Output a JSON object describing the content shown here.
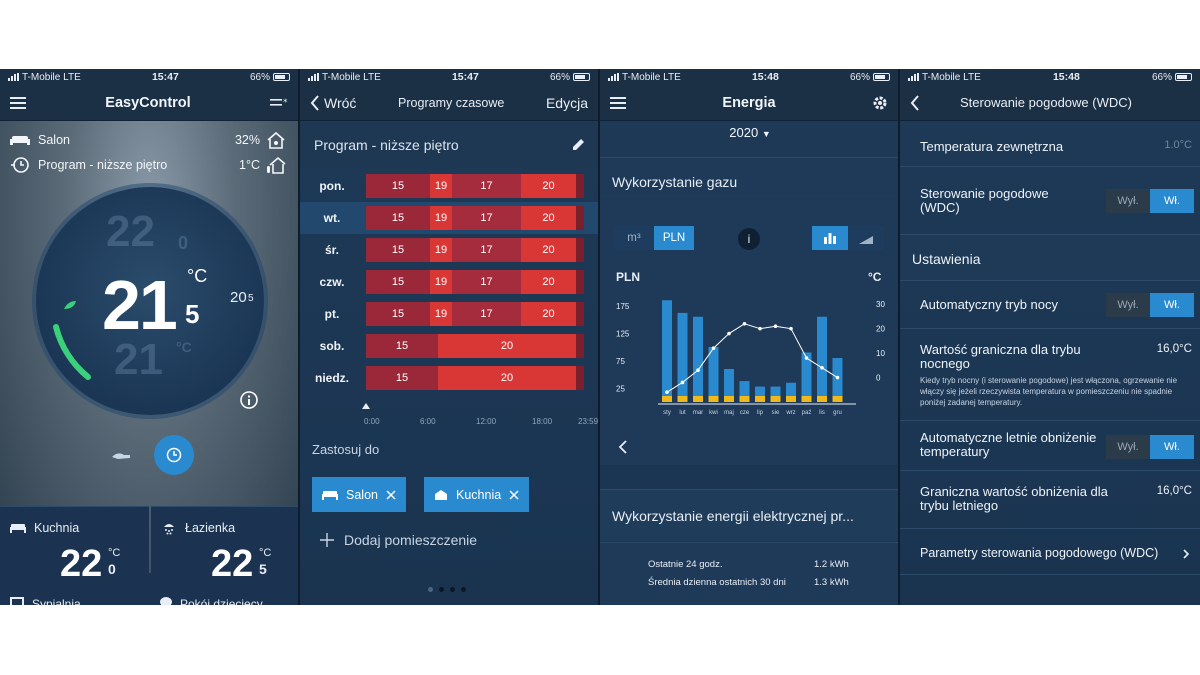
{
  "status_bars": [
    {
      "carrier": "T-Mobile",
      "network": "LTE",
      "time": "15:47",
      "battery": "66%"
    },
    {
      "carrier": "T-Mobile",
      "network": "LTE",
      "time": "15:47",
      "battery": "66%"
    },
    {
      "carrier": "T-Mobile",
      "network": "LTE",
      "time": "15:48",
      "battery": "66%"
    },
    {
      "carrier": "T-Mobile",
      "network": "LTE",
      "time": "15:48",
      "battery": "66%"
    }
  ],
  "screen1": {
    "title": "EasyControl",
    "room_name": "Salon",
    "humidity": "32%",
    "program_name": "Program - niższe piętro",
    "outdoor_temp": "1°C",
    "ghost_top": "22",
    "ghost_top_dec": "0",
    "current_temp": "21",
    "current_temp_dec": "5",
    "temp_unit": "°C",
    "ghost_bottom": "21",
    "ghost_bottom_unit": "°C",
    "side_temp": "20",
    "side_temp_dec": "5",
    "tiles": [
      {
        "name": "Kuchnia",
        "temp": "22",
        "unit": "°C",
        "dec": "0"
      },
      {
        "name": "Łazienka",
        "temp": "22",
        "unit": "°C",
        "dec": "5"
      }
    ],
    "bottom_row": [
      "Sypialnia",
      "Pokój dziecięcy"
    ]
  },
  "screen2": {
    "back_label": "Wróć",
    "title": "Programy czasowe",
    "edit_label": "Edycja",
    "program_name": "Program - niższe piętro",
    "days": [
      {
        "day": "pon.",
        "temps": [
          "15",
          "19",
          "17",
          "20"
        ]
      },
      {
        "day": "wt.",
        "temps": [
          "15",
          "19",
          "17",
          "20"
        ]
      },
      {
        "day": "śr.",
        "temps": [
          "15",
          "19",
          "17",
          "20"
        ]
      },
      {
        "day": "czw.",
        "temps": [
          "15",
          "19",
          "17",
          "20"
        ]
      },
      {
        "day": "pt.",
        "temps": [
          "15",
          "19",
          "17",
          "20"
        ]
      },
      {
        "day": "sob.",
        "temps": [
          "15",
          "20"
        ]
      },
      {
        "day": "niedz.",
        "temps": [
          "15",
          "20"
        ]
      }
    ],
    "time_axis": [
      "0:00",
      "6:00",
      "12:00",
      "18:00",
      "23:59"
    ],
    "apply_to_label": "Zastosuj do",
    "rooms": [
      "Salon",
      "Kuchnia"
    ],
    "add_room_label": "Dodaj pomieszczenie"
  },
  "screen3": {
    "title": "Energia",
    "year": "2020",
    "gas_title": "Wykorzystanie gazu",
    "unit_m3": "m³",
    "unit_pln": "PLN",
    "info_label": "i",
    "y_left_label": "PLN",
    "y_right_label": "°C",
    "electric_title": "Wykorzystanie energii elektrycznej pr...",
    "stat_24h_label": "Ostatnie 24 godz.",
    "stat_24h_value": "1.2 kWh",
    "stat_30d_label": "Średnia dzienna ostatnich 30 dni",
    "stat_30d_value": "1.3 kWh"
  },
  "chart_data": {
    "type": "bar",
    "categories": [
      "sty",
      "lut",
      "mar",
      "kwi",
      "maj",
      "cze",
      "lip",
      "sie",
      "wrz",
      "paź",
      "lis",
      "gru"
    ],
    "series": [
      {
        "values": [
          185,
          162,
          155,
          100,
          60,
          38,
          28,
          28,
          35,
          90,
          155,
          80
        ]
      },
      {
        "values": [
          6,
          6,
          6,
          6,
          6,
          6,
          6,
          6,
          6,
          6,
          6,
          6
        ]
      },
      {
        "values": [
          -6,
          -2,
          3,
          12,
          18,
          22,
          20,
          21,
          20,
          8,
          4,
          0
        ]
      }
    ],
    "y_left_ticks": [
      "175",
      "125",
      "75",
      "25"
    ],
    "y_left_range": [
      0,
      200
    ],
    "y_right_ticks": [
      "30",
      "20",
      "10",
      "0"
    ],
    "y_right_range": [
      -10,
      35
    ]
  },
  "screen4": {
    "title": "Sterowanie pogodowe (WDC)",
    "outdoor_label": "Temperatura zewnętrzna",
    "outdoor_value": "1.0°C",
    "wdc_label": "Sterowanie pogodowe (WDC)",
    "toggle_off": "Wył.",
    "toggle_on": "Wł.",
    "settings_header": "Ustawienia",
    "night_mode_label": "Automatyczny tryb nocy",
    "night_limit_label": "Wartość graniczna dla trybu nocnego",
    "night_limit_value": "16,0°C",
    "night_limit_desc": "Kiedy tryb nocny (i sterowanie pogodowe) jest włączona, ogrzewanie nie włączy się jeżeli rzeczywista temperatura w pomieszczeniu nie spadnie poniżej zadanej temperatury.",
    "summer_label": "Automatyczne letnie obniżenie temperatury",
    "summer_limit_label": "Graniczna wartość obniżenia dla trybu letniego",
    "summer_limit_value": "16,0°C",
    "params_label": "Parametry sterowania pogodowego (WDC)"
  }
}
